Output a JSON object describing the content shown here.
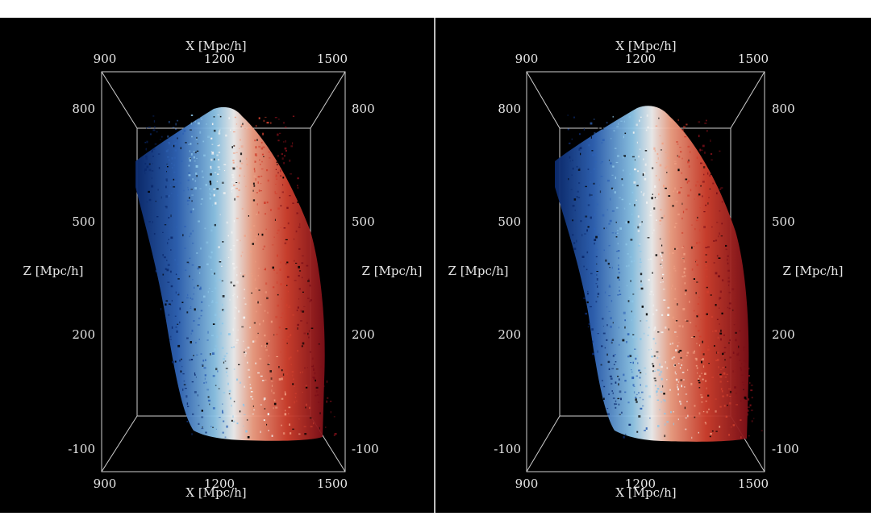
{
  "chart_data": [
    {
      "type": "scatter",
      "panel": "left",
      "title": "",
      "xlabel_top": "X [Mpc/h]",
      "xlabel_bottom": "X [Mpc/h]",
      "zlabel_left": "Z [Mpc/h]",
      "zlabel_right": "Z [Mpc/h]",
      "x_ticks": [
        "900",
        "1200",
        "1500"
      ],
      "z_ticks": [
        "800",
        "500",
        "200",
        "-100"
      ],
      "xlim": [
        900,
        1500
      ],
      "zlim": [
        -100,
        800
      ],
      "colormap": [
        "#0b2a6e",
        "#2f63b5",
        "#8ec6e8",
        "#f2f2f2",
        "#f0a084",
        "#d0402e",
        "#7d0f18"
      ],
      "note_color_axis": "blue to red gradient across the point cloud"
    },
    {
      "type": "scatter",
      "panel": "right",
      "title": "",
      "xlabel_top": "X [Mpc/h]",
      "xlabel_bottom": "X [Mpc/h]",
      "zlabel_left": "Z [Mpc/h]",
      "zlabel_right": "Z [Mpc/h]",
      "x_ticks": [
        "900",
        "1200",
        "1500"
      ],
      "z_ticks": [
        "800",
        "500",
        "200",
        "-100"
      ],
      "xlim": [
        900,
        1500
      ],
      "zlim": [
        -100,
        800
      ],
      "colormap": [
        "#0b2a6e",
        "#2f63b5",
        "#8ec6e8",
        "#f2f2f2",
        "#f0a084",
        "#d0402e",
        "#7d0f18"
      ],
      "note_color_axis": "blue to red gradient across the point cloud"
    }
  ]
}
